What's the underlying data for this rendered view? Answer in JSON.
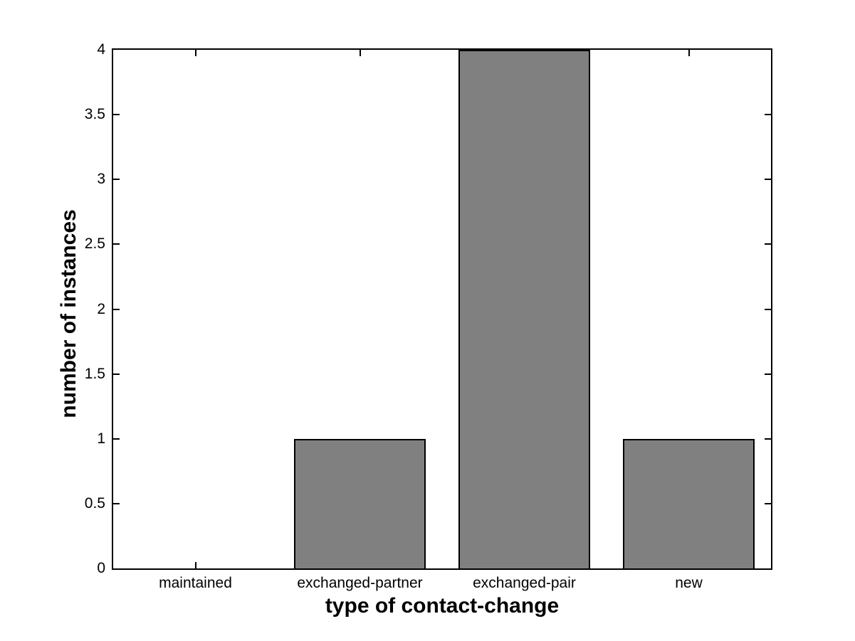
{
  "chart_data": {
    "type": "bar",
    "categories": [
      "maintained",
      "exchanged-partner",
      "exchanged-pair",
      "new"
    ],
    "values": [
      0,
      1,
      4,
      1
    ],
    "title": "",
    "xlabel": "type of contact-change",
    "ylabel": "number of instances",
    "ylim": [
      0,
      4
    ],
    "ytick_step": 0.5,
    "ytick_labels": [
      "0",
      "0.5",
      "1",
      "1.5",
      "2",
      "2.5",
      "3",
      "3.5",
      "4"
    ],
    "bar_color": "#808080",
    "bar_edge_color": "#000000",
    "axis_color": "#000000",
    "background_color": "#ffffff",
    "grid": false,
    "legend": null,
    "bar_width_fraction": 0.8
  }
}
